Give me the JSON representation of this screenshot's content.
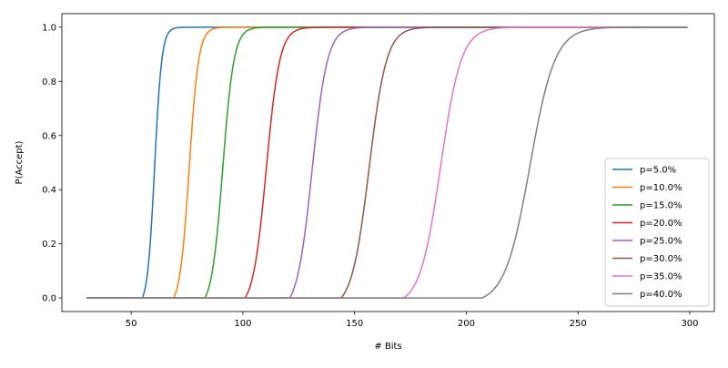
{
  "chart_data": {
    "type": "line",
    "title": "",
    "xlabel": "# Bits",
    "ylabel": "P(Accept)",
    "xlim": [
      19,
      311
    ],
    "ylim": [
      -0.05,
      1.05
    ],
    "xticks": [
      50,
      100,
      150,
      200,
      250,
      300
    ],
    "yticks": [
      0.0,
      0.2,
      0.4,
      0.6,
      0.8,
      1.0
    ],
    "xtick_labels": [
      "50",
      "100",
      "150",
      "200",
      "250",
      "300"
    ],
    "ytick_labels": [
      "0.0",
      "0.2",
      "0.4",
      "0.6",
      "0.8",
      "1.0"
    ],
    "grid": false,
    "legend_position": "lower-right",
    "x_range": [
      30,
      299
    ],
    "series": [
      {
        "name": "p=5.0%",
        "color": "#1f77b4",
        "start": 55,
        "mid": 60.5,
        "spread": 1.6
      },
      {
        "name": "p=10.0%",
        "color": "#ff7f0e",
        "start": 69,
        "mid": 76,
        "spread": 2.1
      },
      {
        "name": "p=15.0%",
        "color": "#2ca02c",
        "start": 83,
        "mid": 91,
        "spread": 2.5
      },
      {
        "name": "p=20.0%",
        "color": "#d62728",
        "start": 101,
        "mid": 110.5,
        "spread": 3.0
      },
      {
        "name": "p=25.0%",
        "color": "#9467bd",
        "start": 121,
        "mid": 131,
        "spread": 3.4
      },
      {
        "name": "p=30.0%",
        "color": "#8c564b",
        "start": 144,
        "mid": 156.5,
        "spread": 3.9
      },
      {
        "name": "p=35.0%",
        "color": "#e377c2",
        "start": 172,
        "mid": 188.5,
        "spread": 4.6
      },
      {
        "name": "p=40.0%",
        "color": "#7f7f7f",
        "start": 207,
        "mid": 228.5,
        "spread": 5.6
      }
    ]
  }
}
